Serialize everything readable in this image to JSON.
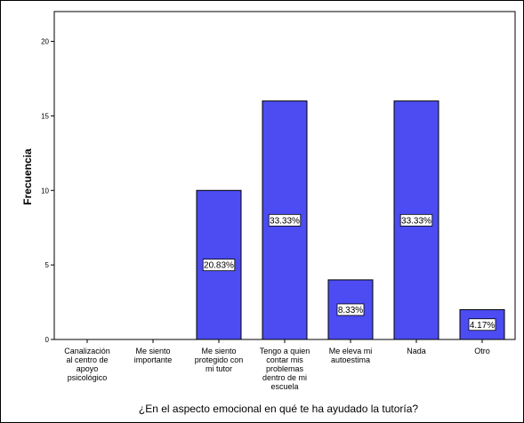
{
  "chart_data": {
    "type": "bar",
    "title": "",
    "xlabel": "¿En el aspecto emocional en qué te ha ayudado la tutoría?",
    "ylabel": "Frecuencia",
    "ylim": [
      0,
      22
    ],
    "yticks": [
      0,
      5,
      10,
      15,
      20
    ],
    "grid": false,
    "categories": [
      [
        "Canalización",
        "al centro de",
        "apoyo",
        "psicológico"
      ],
      [
        "Me siento",
        "importante"
      ],
      [
        "Me siento",
        "protegido con",
        "mi tutor"
      ],
      [
        "Tengo a quien",
        "contar mis",
        "problemas",
        "dentro de mi",
        "escuela"
      ],
      [
        "Me eleva mi",
        "autoestima"
      ],
      [
        "Nada"
      ],
      [
        "Otro"
      ]
    ],
    "values": [
      0,
      0,
      10,
      16,
      4,
      16,
      2
    ],
    "data_labels": [
      "",
      "",
      "20.83%",
      "33.33%",
      "8.33%",
      "33.33%",
      "4.17%"
    ],
    "bar_color": "#4c4cf2",
    "bar_stroke": "#000000"
  }
}
